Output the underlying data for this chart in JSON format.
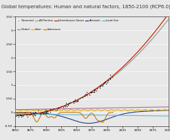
{
  "title": "Global temperatures: Human and natural factors, 1850-2100 (RCP6.0)",
  "title_fontsize": 5.0,
  "background_color": "#e8e8e8",
  "plot_bg": "#e8e8e8",
  "xlim": [
    1850,
    2100
  ],
  "ylim": [
    -0.5,
    3.5
  ],
  "yticks": [
    -0.5,
    0.0,
    0.5,
    1.0,
    1.5,
    2.0,
    2.5,
    3.0,
    3.5
  ],
  "xticks": [
    1850,
    1875,
    1900,
    1925,
    1950,
    1975,
    2000,
    2025,
    2050,
    2075,
    2100
  ],
  "colors": {
    "observed": "#111111",
    "all_factors": "#999999",
    "greenhouse": "#cc2200",
    "aerosols": "#1a3a8c",
    "solar": "#ddaa00",
    "land_use": "#55bbdd",
    "global": "#bb6688",
    "volcanoes": "#cc7700"
  },
  "legend_rows": [
    [
      {
        "label": "Observed",
        "color": "#111111",
        "style": "dot"
      },
      {
        "label": "All Factors",
        "color": "#999999",
        "style": "line"
      },
      {
        "label": "Greenhouse Gases",
        "color": "#cc2200",
        "style": "line"
      },
      {
        "label": "Aerosols",
        "color": "#1a3a8c",
        "style": "line"
      },
      {
        "label": "Land Use",
        "color": "#55bbdd",
        "style": "line"
      }
    ],
    [
      {
        "label": "Global",
        "color": "#bb6688",
        "style": "line"
      },
      {
        "label": "Solar",
        "color": "#ddaa00",
        "style": "line"
      },
      {
        "label": "Volcanoes",
        "color": "#cc7700",
        "style": "line"
      }
    ]
  ]
}
